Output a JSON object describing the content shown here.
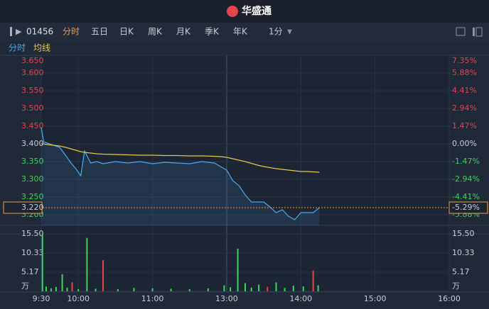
{
  "header": {
    "brand": "华盛通"
  },
  "toolbar": {
    "code": "01456",
    "tabs": [
      "分时",
      "五日",
      "日K",
      "周K",
      "月K",
      "季K",
      "年K"
    ],
    "interval": "1分"
  },
  "chart_data": [
    {
      "type": "line",
      "xlim": [
        0,
        330
      ],
      "xticks": [
        {
          "value": 0,
          "label": "9:30"
        },
        {
          "value": 30,
          "label": "10:00"
        },
        {
          "value": 90,
          "label": "11:00"
        },
        {
          "value": 150,
          "label": "13:00"
        },
        {
          "value": 210,
          "label": "14:00"
        },
        {
          "value": 270,
          "label": "15:00"
        },
        {
          "value": 330,
          "label": "16:00"
        }
      ],
      "x": [
        0,
        2,
        5,
        10,
        15,
        20,
        25,
        28,
        32,
        35,
        40,
        45,
        50,
        60,
        70,
        80,
        90,
        100,
        110,
        120,
        130,
        140,
        145,
        150,
        155,
        160,
        165,
        170,
        175,
        180,
        185,
        190,
        195,
        200,
        205,
        210,
        215,
        220,
        225
      ],
      "series": [
        {
          "name": "分时",
          "color": "#4ea8ec",
          "values": [
            3.446,
            3.406,
            3.402,
            3.396,
            3.39,
            3.366,
            3.342,
            3.33,
            3.31,
            3.38,
            3.346,
            3.35,
            3.344,
            3.35,
            3.346,
            3.35,
            3.344,
            3.348,
            3.346,
            3.344,
            3.35,
            3.346,
            3.336,
            3.326,
            3.296,
            3.282,
            3.256,
            3.236,
            3.236,
            3.236,
            3.222,
            3.206,
            3.214,
            3.196,
            3.186,
            3.206,
            3.206,
            3.206,
            3.22
          ]
        },
        {
          "name": "均线",
          "color": "#e8c547",
          "values": [
            3.4,
            3.4,
            3.398,
            3.396,
            3.394,
            3.39,
            3.385,
            3.382,
            3.378,
            3.376,
            3.374,
            3.372,
            3.371,
            3.37,
            3.369,
            3.368,
            3.368,
            3.367,
            3.367,
            3.366,
            3.366,
            3.365,
            3.364,
            3.362,
            3.358,
            3.354,
            3.35,
            3.345,
            3.34,
            3.336,
            3.333,
            3.33,
            3.328,
            3.326,
            3.324,
            3.322,
            3.322,
            3.321,
            3.32
          ]
        }
      ],
      "ylim": [
        3.17,
        3.65
      ],
      "yticks": [
        {
          "value": 3.65,
          "label": "3.650"
        },
        {
          "value": 3.6,
          "label": "3.600"
        },
        {
          "value": 3.55,
          "label": "3.550"
        },
        {
          "value": 3.5,
          "label": "3.500"
        },
        {
          "value": 3.45,
          "label": "3.450"
        },
        {
          "value": 3.4,
          "label": "3.400"
        },
        {
          "value": 3.35,
          "label": "3.350"
        },
        {
          "value": 3.3,
          "label": "3.300"
        },
        {
          "value": 3.25,
          "label": "3.250"
        },
        {
          "value": 3.2,
          "label": "3.200"
        }
      ],
      "y2lim": [
        -6.76,
        7.35
      ],
      "y2ticks": [
        {
          "value": 7.35,
          "label": "7.35%"
        },
        {
          "value": 5.88,
          "label": "5.88%"
        },
        {
          "value": 4.41,
          "label": "4.41%"
        },
        {
          "value": 2.94,
          "label": "2.94%"
        },
        {
          "value": 1.47,
          "label": "1.47%"
        },
        {
          "value": 0,
          "label": "0.00%"
        },
        {
          "value": -1.47,
          "label": "-1.47%"
        },
        {
          "value": -2.94,
          "label": "-2.94%"
        },
        {
          "value": -4.41,
          "label": "-4.41%"
        },
        {
          "value": -5.88,
          "label": "-5.88%"
        }
      ],
      "last_price": {
        "value": 3.22,
        "label": "3.220"
      },
      "last_change": {
        "value": -5.29,
        "label": "-5.29%"
      }
    },
    {
      "type": "bar",
      "x": [
        1,
        4,
        8,
        12,
        17,
        21,
        25,
        30,
        37,
        44,
        50,
        62,
        75,
        90,
        105,
        120,
        135,
        148,
        153,
        159,
        165,
        170,
        176,
        183,
        190,
        197,
        204,
        212,
        220,
        224
      ],
      "values": [
        15.5,
        1.3,
        0.8,
        1.2,
        4.6,
        1.0,
        2.4,
        0.6,
        14.4,
        0.7,
        8.4,
        0.6,
        0.9,
        0.8,
        0.7,
        0.6,
        0.8,
        1.6,
        1.1,
        11.5,
        2.2,
        1.0,
        1.8,
        1.2,
        2.4,
        0.9,
        1.5,
        1.3,
        5.6,
        1.6
      ],
      "colors": [
        "#3fd35a",
        "#3fd35a",
        "#3fd35a",
        "#3fd35a",
        "#3fd35a",
        "#3fd35a",
        "#e8424f",
        "#3fd35a",
        "#3fd35a",
        "#3fd35a",
        "#e8424f",
        "#3fd35a",
        "#3fd35a",
        "#3fd35a",
        "#3fd35a",
        "#3fd35a",
        "#3fd35a",
        "#3fd35a",
        "#3fd35a",
        "#3fd35a",
        "#3fd35a",
        "#3fd35a",
        "#3fd35a",
        "#e8424f",
        "#3fd35a",
        "#3fd35a",
        "#3fd35a",
        "#3fd35a",
        "#e8424f",
        "#3fd35a"
      ],
      "ylim": [
        0,
        15.5
      ],
      "yticks": [
        {
          "value": 15.5,
          "label": "15.50"
        },
        {
          "value": 10.33,
          "label": "10.33"
        },
        {
          "value": 5.17,
          "label": "5.17"
        },
        {
          "value": 0,
          "label": "万"
        }
      ]
    }
  ]
}
